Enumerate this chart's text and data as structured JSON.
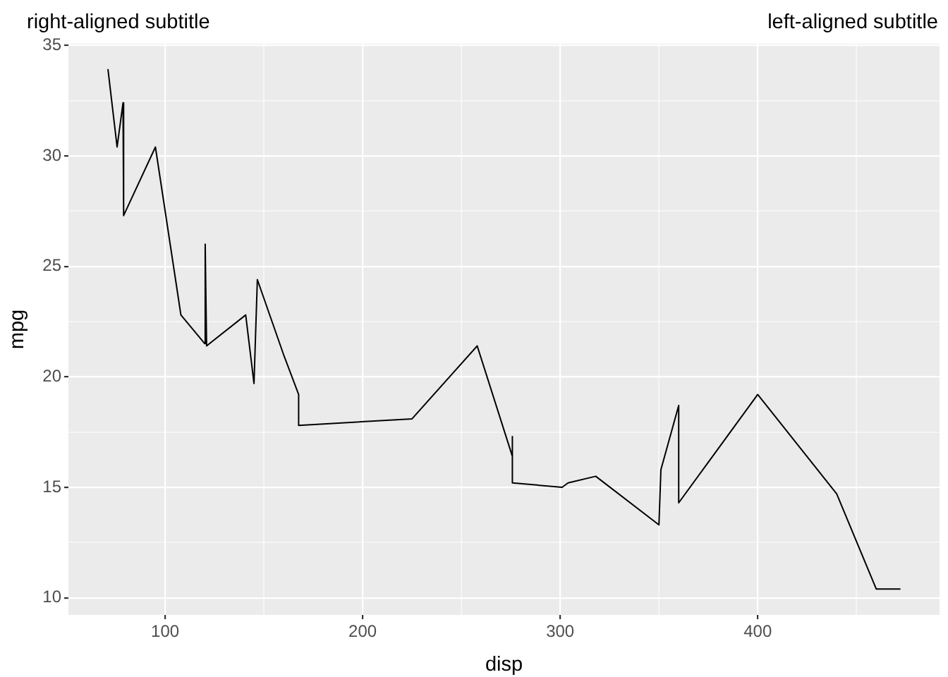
{
  "chart_data": {
    "type": "line",
    "title": "right-aligned subtitle",
    "subtitle": "left-aligned subtitle",
    "xlabel": "disp",
    "ylabel": "mpg",
    "x": [
      71.1,
      75.7,
      78.7,
      79.0,
      95.1,
      108.0,
      120.1,
      120.3,
      121.0,
      140.8,
      145.0,
      146.7,
      160.0,
      160.0,
      167.6,
      167.6,
      225.0,
      258.0,
      275.8,
      275.8,
      275.8,
      301.0,
      304.0,
      318.0,
      350.0,
      351.0,
      360.0,
      360.0,
      400.0,
      440.0,
      460.0,
      472.0
    ],
    "series": [
      {
        "color": "#000000",
        "values": [
          33.9,
          30.4,
          32.4,
          27.3,
          30.4,
          22.8,
          21.5,
          26.0,
          21.4,
          22.8,
          19.7,
          24.4,
          21.0,
          21.0,
          19.2,
          17.8,
          18.1,
          21.4,
          16.4,
          17.3,
          15.2,
          15.0,
          15.2,
          15.5,
          13.3,
          15.8,
          18.7,
          14.3,
          19.2,
          14.7,
          10.4,
          10.4
        ]
      }
    ],
    "xlim": [
      51.055,
      492.045
    ],
    "ylim": [
      9.225,
      35.075
    ],
    "xticks": [
      100,
      {
        "value": 150,
        "label": null
      },
      200,
      {
        "value": 250,
        "label": null
      },
      300,
      {
        "value": 350,
        "label": null
      },
      400,
      {
        "value": 450,
        "label": null
      }
    ],
    "yticks": [
      10,
      {
        "value": 12.5,
        "label": null
      },
      15,
      {
        "value": 17.5,
        "label": null
      },
      20,
      {
        "value": 22.5,
        "label": null
      },
      25,
      {
        "value": 27.5,
        "label": null
      },
      30,
      {
        "value": 32.5,
        "label": null
      },
      35
    ],
    "grid": true,
    "marker": "none",
    "line_style": "solid"
  }
}
